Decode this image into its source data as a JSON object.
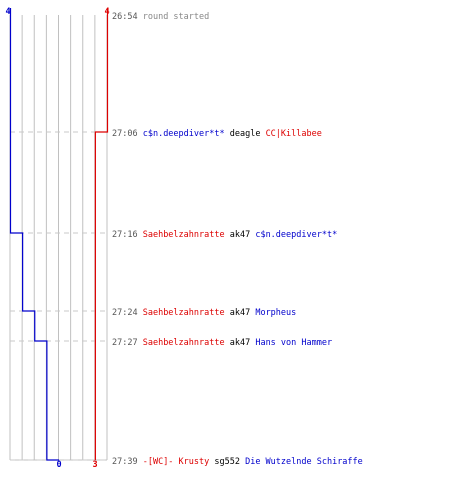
{
  "chart_data": {
    "type": "line",
    "title": "",
    "team_left": {
      "start": "4",
      "end": "0",
      "color": "#0000cc"
    },
    "team_right": {
      "start": "4",
      "end": "3",
      "color": "#dd0000"
    },
    "times": [
      "26:54",
      "27:06",
      "27:16",
      "27:24",
      "27:27",
      "27:39"
    ],
    "series": [
      {
        "color": "#0000cc",
        "values": [
          4,
          4,
          3,
          2,
          1,
          0
        ]
      },
      {
        "color": "#dd0000",
        "values": [
          4,
          3,
          3,
          3,
          3,
          3
        ]
      }
    ],
    "events": [
      {
        "time": "26:54",
        "text": "round started"
      },
      {
        "time": "27:06",
        "killer": "c$n.deepdiver*t*",
        "killer_color": "#0000cc",
        "weapon": "deagle",
        "victim": "CC|Killabee",
        "victim_color": "#dd0000"
      },
      {
        "time": "27:16",
        "killer": "Saehbelzahnratte",
        "killer_color": "#dd0000",
        "weapon": "ak47",
        "victim": "c$n.deepdiver*t*",
        "victim_color": "#0000cc"
      },
      {
        "time": "27:24",
        "killer": "Saehbelzahnratte",
        "killer_color": "#dd0000",
        "weapon": "ak47",
        "victim": "Morpheus",
        "victim_color": "#0000cc"
      },
      {
        "time": "27:27",
        "killer": "Saehbelzahnratte",
        "killer_color": "#dd0000",
        "weapon": "ak47",
        "victim": "Hans von Hammer",
        "victim_color": "#0000cc"
      },
      {
        "time": "27:39",
        "killer": "-[WC]- Krusty",
        "killer_color": "#dd0000",
        "weapon": "sg552",
        "victim": "Die Wutzelnde Schiraffe",
        "victim_color": "#0000cc"
      }
    ],
    "colors": {
      "grid": "#c0c0c0",
      "center": "#666666",
      "guide": "#c8c8c8",
      "time_text": "#555555",
      "weapon_text": "#000000",
      "plain_text": "#888888"
    }
  }
}
